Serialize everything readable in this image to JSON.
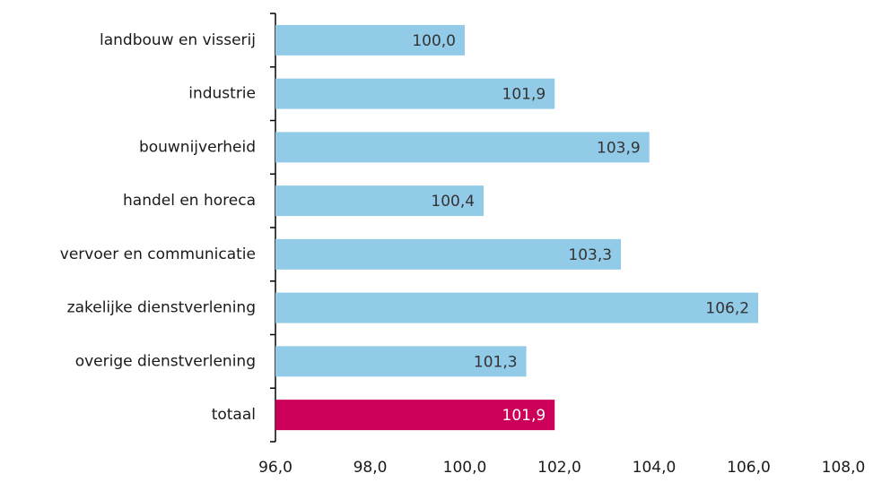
{
  "chart_data": {
    "type": "barh",
    "categories": [
      "landbouw en visserij",
      "industrie",
      "bouwnijverheid",
      "handel en horeca",
      "vervoer en communicatie",
      "zakelijke dienstverlening",
      "overige dienstverlening",
      "totaal"
    ],
    "values": [
      100.0,
      101.9,
      103.9,
      100.4,
      103.3,
      106.2,
      101.3,
      101.9
    ],
    "value_labels": [
      "100,0",
      "101,9",
      "103,9",
      "100,4",
      "103,3",
      "106,2",
      "101,3",
      "101,9"
    ],
    "colors": [
      "#92cbe8",
      "#92cbe8",
      "#92cbe8",
      "#92cbe8",
      "#92cbe8",
      "#92cbe8",
      "#92cbe8",
      "#cc0058"
    ],
    "label_colors": [
      "#333333",
      "#333333",
      "#333333",
      "#333333",
      "#333333",
      "#333333",
      "#333333",
      "#ffffff"
    ],
    "xlim": [
      96,
      108
    ],
    "xticks": [
      {
        "value": 96,
        "label": "96,0"
      },
      {
        "value": 98,
        "label": "98,0"
      },
      {
        "value": 100,
        "label": "100,0"
      },
      {
        "value": 102,
        "label": "102,0"
      },
      {
        "value": 104,
        "label": "104,0"
      },
      {
        "value": 106,
        "label": "106,0"
      },
      {
        "value": 108,
        "label": "108,0"
      }
    ],
    "grid": false
  }
}
